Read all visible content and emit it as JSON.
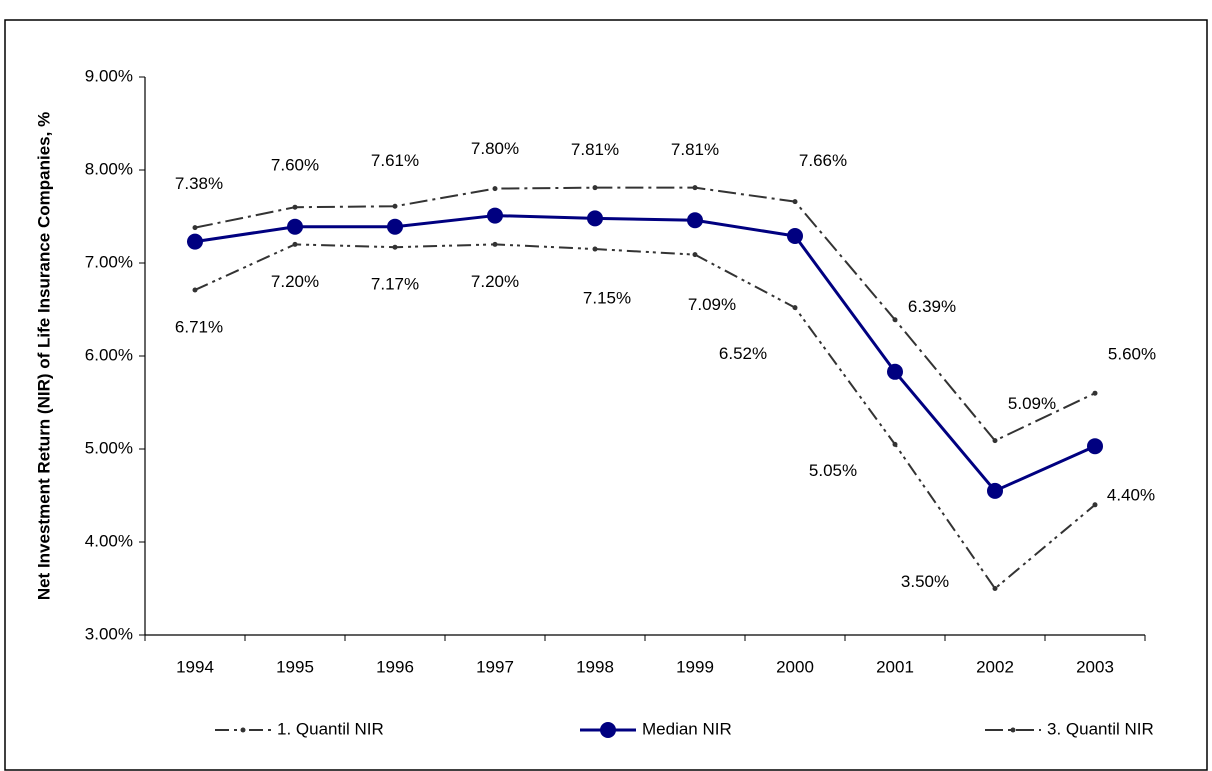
{
  "chart_data": {
    "type": "line",
    "y_label": "Net Investment Return (NIR) of Life Insurance Companies, %",
    "categories": [
      "1994",
      "1995",
      "1996",
      "1997",
      "1998",
      "1999",
      "2000",
      "2001",
      "2002",
      "2003"
    ],
    "series": [
      {
        "name": "1. Quantil NIR",
        "color": "#333333",
        "dash": "dash-dot-dot",
        "values": [
          6.71,
          7.2,
          7.17,
          7.2,
          7.15,
          7.09,
          6.52,
          5.05,
          3.5,
          4.4
        ],
        "value_labels": [
          "6.71%",
          "7.20%",
          "7.17%",
          "7.20%",
          "7.15%",
          "7.09%",
          "6.52%",
          "5.05%",
          "3.50%",
          "4.40%"
        ]
      },
      {
        "name": "Median NIR",
        "color": "#000080",
        "dash": "solid",
        "values": [
          7.23,
          7.39,
          7.39,
          7.51,
          7.48,
          7.46,
          7.29,
          5.83,
          4.55,
          5.03
        ]
      },
      {
        "name": "3. Quantil NIR",
        "color": "#333333",
        "dash": "dash-dot",
        "values": [
          7.38,
          7.6,
          7.61,
          7.8,
          7.81,
          7.81,
          7.66,
          6.39,
          5.09,
          5.6
        ],
        "value_labels": [
          "7.38%",
          "7.60%",
          "7.61%",
          "7.80%",
          "7.81%",
          "7.81%",
          "7.66%",
          "6.39%",
          "5.09%",
          "5.60%"
        ]
      }
    ],
    "ylim": [
      3,
      9
    ],
    "yticks": [
      {
        "value": 3,
        "label": "3.00%"
      },
      {
        "value": 4,
        "label": "4.00%"
      },
      {
        "value": 5,
        "label": "5.00%"
      },
      {
        "value": 6,
        "label": "6.00%"
      },
      {
        "value": 7,
        "label": "7.00%"
      },
      {
        "value": 8,
        "label": "8.00%"
      },
      {
        "value": 9,
        "label": "9.00%"
      }
    ],
    "grid": false,
    "legend": "bottom"
  }
}
